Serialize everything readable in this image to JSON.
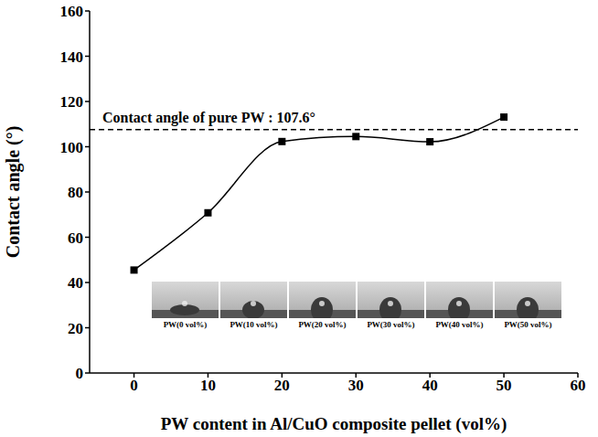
{
  "chart_data": {
    "type": "line",
    "x": [
      0,
      10,
      20,
      30,
      40,
      50
    ],
    "series": [
      {
        "name": "Contact angle",
        "color": "#000000",
        "marker": "square",
        "line_style": "solid",
        "values": [
          45.5,
          70.8,
          102.3,
          104.5,
          102.2,
          113.1
        ]
      }
    ],
    "xlabel": "PW content in Al/CuO composite pellet (vol%)",
    "ylabel": "Contact angle (°)",
    "xlim": [
      -6,
      60
    ],
    "xticks": [
      0,
      10,
      20,
      30,
      40,
      50,
      60
    ],
    "ylim": [
      0,
      160
    ],
    "yticks": [
      0,
      20,
      40,
      60,
      80,
      100,
      120,
      140,
      160
    ],
    "reference_line": {
      "value": 107.6,
      "label": "Contact angle of pure PW : 107.6°"
    },
    "inset_labels": [
      "PW(0 vol%)",
      "PW(10 vol%)",
      "PW(20 vol%)",
      "PW(30 vol%)",
      "PW(40 vol%)",
      "PW(50 vol%)"
    ],
    "grid": false
  }
}
